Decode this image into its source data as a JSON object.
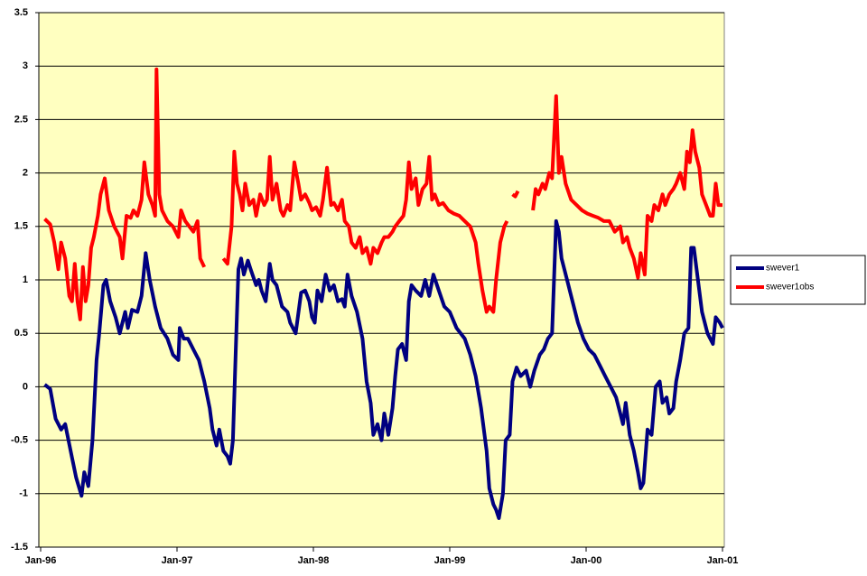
{
  "chart_data": {
    "type": "line",
    "xlim": [
      1996,
      2001
    ],
    "xticks": [
      {
        "value": 1996,
        "label": "Jan-96"
      },
      {
        "value": 1997,
        "label": "Jan-97"
      },
      {
        "value": 1998,
        "label": "Jan-98"
      },
      {
        "value": 1999,
        "label": "Jan-99"
      },
      {
        "value": 2000,
        "label": "Jan-00"
      },
      {
        "value": 2001,
        "label": "Jan-01"
      }
    ],
    "ylim": [
      -1.5,
      3.5
    ],
    "yticks": [
      -1.5,
      -1,
      -0.5,
      0,
      0.5,
      1,
      1.5,
      2,
      2.5,
      3,
      3.5
    ],
    "grid": true,
    "legend": "right",
    "series": [
      {
        "name": "swever1",
        "color": "#000080",
        "x": [
          1996.03,
          1996.07,
          1996.11,
          1996.15,
          1996.18,
          1996.22,
          1996.26,
          1996.3,
          1996.32,
          1996.35,
          1996.38,
          1996.41,
          1996.43,
          1996.46,
          1996.48,
          1996.51,
          1996.55,
          1996.58,
          1996.62,
          1996.64,
          1996.67,
          1996.71,
          1996.74,
          1996.77,
          1996.8,
          1996.84,
          1996.88,
          1996.93,
          1996.97,
          1997.01,
          1997.02,
          1997.05,
          1997.08,
          1997.12,
          1997.16,
          1997.2,
          1997.24,
          1997.26,
          1997.29,
          1997.31,
          1997.34,
          1997.37,
          1997.39,
          1997.41,
          1997.43,
          1997.45,
          1997.47,
          1997.49,
          1997.52,
          1997.54,
          1997.58,
          1997.6,
          1997.62,
          1997.65,
          1997.68,
          1997.7,
          1997.73,
          1997.77,
          1997.81,
          1997.83,
          1997.87,
          1997.91,
          1997.94,
          1997.97,
          1997.99,
          1998.01,
          1998.03,
          1998.06,
          1998.09,
          1998.12,
          1998.15,
          1998.18,
          1998.21,
          1998.23,
          1998.25,
          1998.28,
          1998.32,
          1998.36,
          1998.39,
          1998.42,
          1998.44,
          1998.47,
          1998.5,
          1998.52,
          1998.55,
          1998.58,
          1998.6,
          1998.62,
          1998.65,
          1998.68,
          1998.7,
          1998.72,
          1998.75,
          1998.79,
          1998.82,
          1998.85,
          1998.88,
          1998.92,
          1998.96,
          1999.0,
          1999.05,
          1999.11,
          1999.15,
          1999.19,
          1999.23,
          1999.27,
          1999.29,
          1999.32,
          1999.34,
          1999.36,
          1999.39,
          1999.41,
          1999.44,
          1999.46,
          1999.49,
          1999.52,
          1999.56,
          1999.59,
          1999.62,
          1999.66,
          1999.69,
          1999.72,
          1999.75,
          1999.78,
          1999.8,
          1999.82,
          1999.86,
          1999.9,
          1999.94,
          1999.98,
          2000.02,
          2000.06,
          2000.1,
          2000.14,
          2000.18,
          2000.22,
          2000.25,
          2000.27,
          2000.29,
          2000.32,
          2000.35,
          2000.38,
          2000.4,
          2000.42,
          2000.45,
          2000.48,
          2000.51,
          2000.54,
          2000.56,
          2000.59,
          2000.61,
          2000.64,
          2000.66,
          2000.69,
          2000.72,
          2000.75,
          2000.77,
          2000.79,
          2000.82,
          2000.85,
          2000.89,
          2000.93,
          2000.95,
          2000.98,
          2001.0
        ],
        "values": [
          0.02,
          -0.02,
          -0.3,
          -0.4,
          -0.35,
          -0.6,
          -0.85,
          -1.02,
          -0.8,
          -0.93,
          -0.5,
          0.25,
          0.5,
          0.95,
          1.0,
          0.8,
          0.65,
          0.5,
          0.7,
          0.55,
          0.72,
          0.7,
          0.85,
          1.25,
          1.0,
          0.75,
          0.55,
          0.45,
          0.3,
          0.25,
          0.55,
          0.45,
          0.45,
          0.35,
          0.25,
          0.05,
          -0.2,
          -0.4,
          -0.55,
          -0.4,
          -0.6,
          -0.65,
          -0.72,
          -0.5,
          0.3,
          1.1,
          1.2,
          1.05,
          1.18,
          1.1,
          0.95,
          1.0,
          0.9,
          0.8,
          1.15,
          1.0,
          0.95,
          0.75,
          0.7,
          0.6,
          0.5,
          0.88,
          0.9,
          0.8,
          0.65,
          0.6,
          0.9,
          0.8,
          1.05,
          0.9,
          0.95,
          0.8,
          0.82,
          0.75,
          1.05,
          0.85,
          0.7,
          0.45,
          0.05,
          -0.15,
          -0.45,
          -0.35,
          -0.5,
          -0.25,
          -0.45,
          -0.2,
          0.1,
          0.35,
          0.4,
          0.25,
          0.8,
          0.95,
          0.9,
          0.85,
          1.0,
          0.85,
          1.05,
          0.9,
          0.75,
          0.7,
          0.55,
          0.45,
          0.3,
          0.1,
          -0.2,
          -0.6,
          -0.95,
          -1.1,
          -1.15,
          -1.23,
          -1.0,
          -0.5,
          -0.45,
          0.05,
          0.18,
          0.1,
          0.15,
          0.0,
          0.15,
          0.3,
          0.35,
          0.45,
          0.5,
          1.55,
          1.45,
          1.2,
          1.0,
          0.8,
          0.6,
          0.45,
          0.35,
          0.3,
          0.2,
          0.1,
          0.0,
          -0.1,
          -0.25,
          -0.35,
          -0.15,
          -0.45,
          -0.6,
          -0.8,
          -0.95,
          -0.9,
          -0.4,
          -0.45,
          0.0,
          0.05,
          -0.15,
          -0.1,
          -0.25,
          -0.2,
          0.05,
          0.25,
          0.5,
          0.55,
          1.3,
          1.3,
          1.0,
          0.7,
          0.5,
          0.4,
          0.65,
          0.6,
          0.55
        ]
      },
      {
        "name": "swever1obs",
        "color": "#ff0000",
        "x": [
          1996.03,
          1996.07,
          1996.1,
          1996.13,
          1996.15,
          1996.18,
          1996.21,
          1996.23,
          1996.25,
          1996.27,
          1996.29,
          1996.31,
          1996.33,
          1996.35,
          1996.37,
          1996.39,
          1996.42,
          1996.44,
          1996.47,
          1996.5,
          1996.54,
          1996.58,
          1996.6,
          1996.63,
          1996.66,
          1996.68,
          1996.71,
          1996.74,
          1996.76,
          1996.79,
          1996.82,
          1996.84,
          1996.85,
          1996.87,
          1996.89,
          1996.93,
          1996.97,
          1997.01,
          1997.03,
          1997.06,
          1997.09,
          1997.12,
          1997.15,
          1997.17,
          1997.2,
          1997.27,
          1997.34,
          1997.37,
          1997.4,
          1997.42,
          1997.44,
          1997.46,
          1997.48,
          1997.5,
          1997.53,
          1997.56,
          1997.58,
          1997.61,
          1997.64,
          1997.66,
          1997.68,
          1997.7,
          1997.73,
          1997.76,
          1997.78,
          1997.81,
          1997.83,
          1997.86,
          1997.89,
          1997.91,
          1997.94,
          1997.97,
          1997.99,
          1998.02,
          1998.05,
          1998.07,
          1998.1,
          1998.13,
          1998.15,
          1998.18,
          1998.21,
          1998.23,
          1998.26,
          1998.28,
          1998.31,
          1998.34,
          1998.36,
          1998.39,
          1998.42,
          1998.44,
          1998.47,
          1998.5,
          1998.52,
          1998.55,
          1998.58,
          1998.6,
          1998.63,
          1998.66,
          1998.68,
          1998.7,
          1998.72,
          1998.75,
          1998.77,
          1998.8,
          1998.83,
          1998.85,
          1998.87,
          1998.89,
          1998.92,
          1998.95,
          1998.99,
          1999.03,
          1999.07,
          1999.11,
          1999.15,
          1999.19,
          1999.21,
          1999.24,
          1999.27,
          1999.29,
          1999.32,
          1999.34,
          1999.37,
          1999.4,
          1999.42,
          1999.44,
          1999.46,
          1999.48,
          1999.5,
          1999.55,
          1999.61,
          1999.63,
          1999.65,
          1999.68,
          1999.7,
          1999.73,
          1999.75,
          1999.78,
          1999.8,
          1999.82,
          1999.85,
          1999.89,
          1999.93,
          1999.97,
          2000.01,
          2000.05,
          2000.09,
          2000.13,
          2000.17,
          2000.21,
          2000.25,
          2000.27,
          2000.3,
          2000.32,
          2000.35,
          2000.38,
          2000.4,
          2000.43,
          2000.45,
          2000.48,
          2000.5,
          2000.53,
          2000.56,
          2000.58,
          2000.61,
          2000.64,
          2000.66,
          2000.69,
          2000.72,
          2000.74,
          2000.76,
          2000.78,
          2000.8,
          2000.83,
          2000.85,
          2000.88,
          2000.91,
          2000.93,
          2000.95,
          2000.97,
          2001.0
        ],
        "values": [
          1.57,
          1.52,
          1.35,
          1.1,
          1.35,
          1.2,
          0.85,
          0.8,
          1.15,
          0.8,
          0.63,
          1.12,
          0.8,
          0.95,
          1.3,
          1.4,
          1.6,
          1.8,
          1.95,
          1.65,
          1.5,
          1.4,
          1.2,
          1.6,
          1.58,
          1.65,
          1.6,
          1.75,
          2.1,
          1.8,
          1.7,
          1.6,
          2.97,
          1.8,
          1.65,
          1.55,
          1.5,
          1.4,
          1.65,
          1.55,
          1.5,
          1.45,
          1.55,
          1.2,
          1.12,
          null,
          1.2,
          1.15,
          1.5,
          2.2,
          1.9,
          1.8,
          1.65,
          1.9,
          1.7,
          1.75,
          1.6,
          1.8,
          1.7,
          1.75,
          2.15,
          1.75,
          1.9,
          1.65,
          1.6,
          1.7,
          1.65,
          2.1,
          1.9,
          1.75,
          1.8,
          1.72,
          1.65,
          1.68,
          1.6,
          1.75,
          2.05,
          1.7,
          1.72,
          1.65,
          1.75,
          1.55,
          1.5,
          1.35,
          1.3,
          1.4,
          1.25,
          1.3,
          1.15,
          1.3,
          1.25,
          1.35,
          1.4,
          1.4,
          1.45,
          1.5,
          1.55,
          1.6,
          1.75,
          2.1,
          1.85,
          1.95,
          1.7,
          1.85,
          1.9,
          2.15,
          1.75,
          1.8,
          1.7,
          1.72,
          1.65,
          1.62,
          1.6,
          1.55,
          1.5,
          1.35,
          1.15,
          0.9,
          0.7,
          0.75,
          0.7,
          1.0,
          1.35,
          1.5,
          1.55,
          null,
          1.8,
          1.78,
          1.83,
          null,
          1.65,
          1.85,
          1.8,
          1.9,
          1.85,
          2.0,
          1.95,
          2.72,
          2.0,
          2.15,
          1.9,
          1.75,
          1.7,
          1.65,
          1.62,
          1.6,
          1.58,
          1.55,
          1.55,
          1.45,
          1.5,
          1.35,
          1.4,
          1.3,
          1.2,
          1.02,
          1.25,
          1.05,
          1.6,
          1.55,
          1.7,
          1.65,
          1.8,
          1.7,
          1.8,
          1.85,
          1.9,
          2.0,
          1.85,
          2.2,
          2.1,
          2.4,
          2.2,
          2.05,
          1.8,
          1.7,
          1.6,
          1.6,
          1.9,
          1.7,
          1.7
        ]
      }
    ]
  }
}
